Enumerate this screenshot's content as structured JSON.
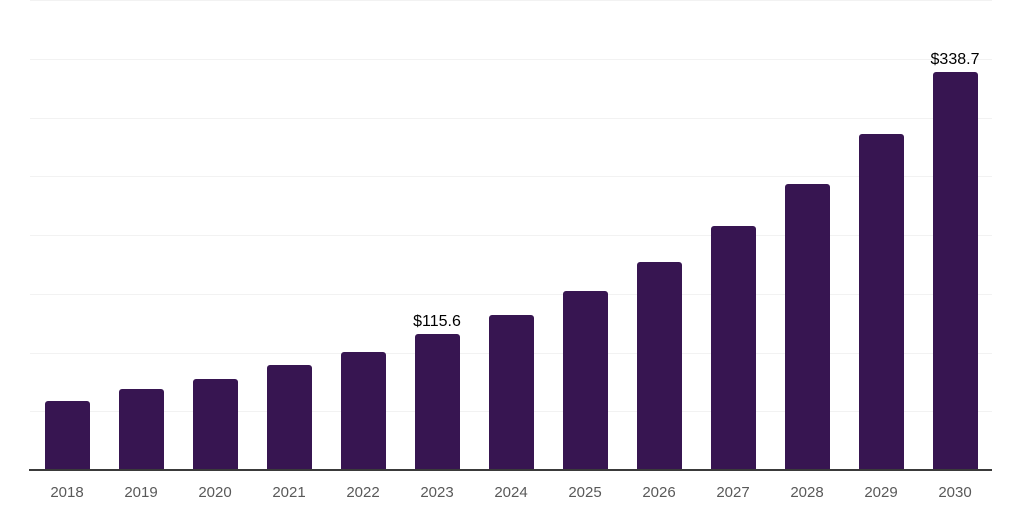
{
  "chart_data": {
    "type": "bar",
    "title": "",
    "xlabel": "",
    "ylabel": "",
    "categories": [
      "2018",
      "2019",
      "2020",
      "2021",
      "2022",
      "2023",
      "2024",
      "2025",
      "2026",
      "2027",
      "2028",
      "2029",
      "2030"
    ],
    "values": [
      58.7,
      68.7,
      77.3,
      89.6,
      100.8,
      115.6,
      131.9,
      152.5,
      177.3,
      207.6,
      243.4,
      286.0,
      338.7
    ],
    "data_labels": [
      "",
      "",
      "",
      "",
      "",
      "$115.6",
      "",
      "",
      "",
      "",
      "",
      "",
      "$338.7"
    ],
    "ylim": [
      0,
      400
    ],
    "gridline_interval": 50,
    "grid": true,
    "legend": false,
    "colors": {
      "bar": "#371551",
      "axis_line": "#3a3a3a",
      "gridline": "#f2f2f2",
      "tick_label": "#595959",
      "data_label": "#000000",
      "background": "#ffffff"
    }
  }
}
